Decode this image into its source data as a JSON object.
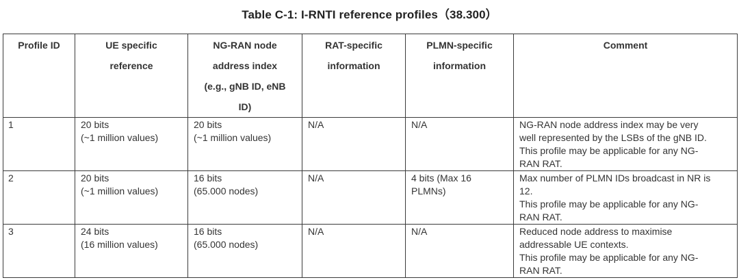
{
  "title": "Table C-1: I-RNTI reference profiles（38.300）",
  "headers": [
    [
      "Profile ID"
    ],
    [
      "UE specific",
      "reference"
    ],
    [
      "NG-RAN node",
      "address index",
      "(e.g., gNB ID, eNB",
      "ID)"
    ],
    [
      "RAT-specific",
      "information"
    ],
    [
      "PLMN-specific",
      "information"
    ],
    [
      "Comment"
    ]
  ],
  "rows": [
    {
      "profile_id": "1",
      "ue_ref": [
        "20 bits",
        "(~1 million values)"
      ],
      "node_index": [
        "20 bits",
        "(~1 million values)"
      ],
      "rat_info": [
        "N/A"
      ],
      "plmn_info": [
        "N/A"
      ],
      "comment": [
        "NG-RAN node address index may be very",
        "well represented by the LSBs of the gNB ID.",
        "This profile may be applicable for any NG-",
        "RAN RAT."
      ]
    },
    {
      "profile_id": "2",
      "ue_ref": [
        "20 bits",
        "(~1 million values)"
      ],
      "node_index": [
        "16 bits",
        "(65.000 nodes)"
      ],
      "rat_info": [
        "N/A"
      ],
      "plmn_info": [
        "4 bits (Max 16",
        "PLMNs)"
      ],
      "comment": [
        "Max number of PLMN IDs broadcast in NR is",
        "12.",
        "This profile may be applicable for any NG-",
        "RAN RAT."
      ]
    },
    {
      "profile_id": "3",
      "ue_ref": [
        "24 bits",
        "(16 million values)"
      ],
      "node_index": [
        "16 bits",
        "(65.000 nodes)"
      ],
      "rat_info": [
        "N/A"
      ],
      "plmn_info": [
        "N/A"
      ],
      "comment": [
        "Reduced node address to maximise",
        "addressable UE contexts.",
        "This profile may be applicable for any NG-",
        "RAN RAT."
      ]
    }
  ]
}
